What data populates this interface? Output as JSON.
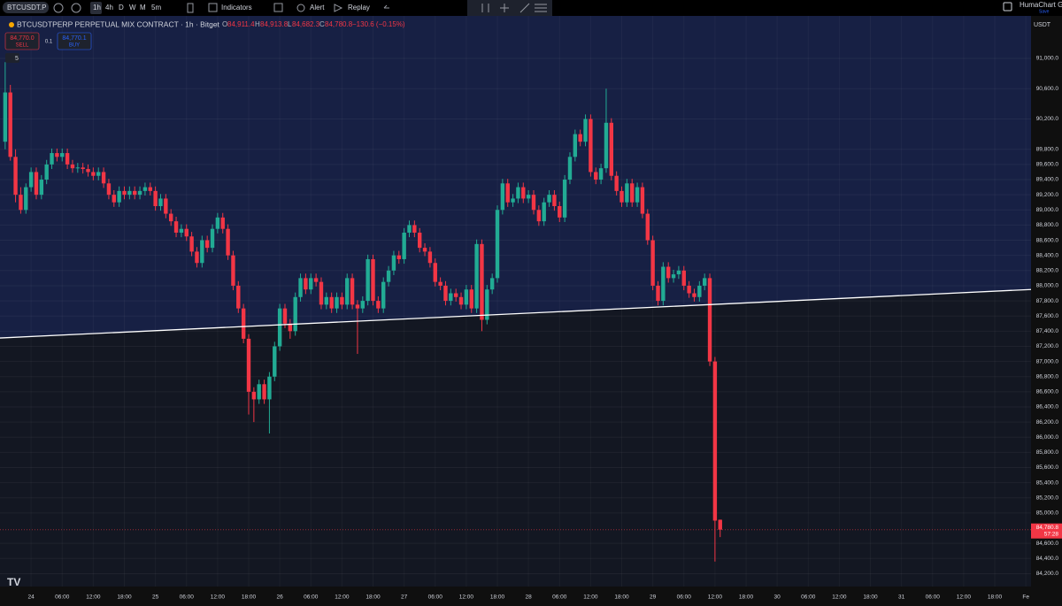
{
  "toolbar": {
    "symbol": "BTCUSDT.P",
    "intervals": [
      "1h",
      "4h",
      "D",
      "W",
      "M",
      "5m"
    ],
    "indicators": "Indicators",
    "alert": "Alert",
    "replay": "Replay",
    "account": "HumaChart Gr",
    "save": "Save"
  },
  "legend": {
    "title": "BTCUSDTPERP PERPETUAL MIX CONTRACT · 1h · Bitget",
    "o_label": "O",
    "o": "84,911.4",
    "h_label": "H",
    "h": "84,913.8",
    "l_label": "L",
    "l": "84,682.3",
    "c_label": "C",
    "c": "84,780.8",
    "change": "−130.6 (−0.15%)",
    "sell_price": "84,770.0",
    "sell": "SELL",
    "qty": "0.1",
    "buy_price": "84,770.1",
    "buy": "BUY",
    "indicator_count": "5"
  },
  "chart_data": {
    "type": "candlestick",
    "currency": "USDT",
    "up_color": "#22ab94",
    "down_color": "#f23645",
    "grid": true,
    "xlim": [
      -6,
      193
    ],
    "ylim": [
      84030,
      91560
    ],
    "xticks": [
      {
        "value": 0,
        "label": "24"
      },
      {
        "value": 6,
        "label": "06:00"
      },
      {
        "value": 12,
        "label": "12:00"
      },
      {
        "value": 18,
        "label": "18:00"
      },
      {
        "value": 24,
        "label": "25"
      },
      {
        "value": 30,
        "label": "06:00"
      },
      {
        "value": 36,
        "label": "12:00"
      },
      {
        "value": 42,
        "label": "18:00"
      },
      {
        "value": 48,
        "label": "26"
      },
      {
        "value": 54,
        "label": "06:00"
      },
      {
        "value": 60,
        "label": "12:00"
      },
      {
        "value": 66,
        "label": "18:00"
      },
      {
        "value": 72,
        "label": "27"
      },
      {
        "value": 78,
        "label": "06:00"
      },
      {
        "value": 84,
        "label": "12:00"
      },
      {
        "value": 90,
        "label": "18:00"
      },
      {
        "value": 96,
        "label": "28"
      },
      {
        "value": 102,
        "label": "06:00"
      },
      {
        "value": 108,
        "label": "12:00"
      },
      {
        "value": 114,
        "label": "18:00"
      },
      {
        "value": 120,
        "label": "29"
      },
      {
        "value": 126,
        "label": "06:00"
      },
      {
        "value": 132,
        "label": "12:00"
      },
      {
        "value": 138,
        "label": "18:00"
      },
      {
        "value": 144,
        "label": "30"
      },
      {
        "value": 150,
        "label": "06:00"
      },
      {
        "value": 156,
        "label": "12:00"
      },
      {
        "value": 162,
        "label": "18:00"
      },
      {
        "value": 168,
        "label": "31"
      },
      {
        "value": 174,
        "label": "06:00"
      },
      {
        "value": 180,
        "label": "12:00"
      },
      {
        "value": 186,
        "label": "18:00"
      },
      {
        "value": 192,
        "label": "Fe"
      }
    ],
    "yticks": [
      {
        "value": 91000,
        "label": "91,000.0"
      },
      {
        "value": 90600,
        "label": "90,600.0"
      },
      {
        "value": 90200,
        "label": "90,200.0"
      },
      {
        "value": 89800,
        "label": "89,800.0"
      },
      {
        "value": 89600,
        "label": "89,600.0"
      },
      {
        "value": 89400,
        "label": "89,400.0"
      },
      {
        "value": 89200,
        "label": "89,200.0"
      },
      {
        "value": 89000,
        "label": "89,000.0"
      },
      {
        "value": 88800,
        "label": "88,800.0"
      },
      {
        "value": 88600,
        "label": "88,600.0"
      },
      {
        "value": 88400,
        "label": "88,400.0"
      },
      {
        "value": 88200,
        "label": "88,200.0"
      },
      {
        "value": 88000,
        "label": "88,000.0"
      },
      {
        "value": 87800,
        "label": "87,800.0"
      },
      {
        "value": 87600,
        "label": "87,600.0"
      },
      {
        "value": 87400,
        "label": "87,400.0"
      },
      {
        "value": 87200,
        "label": "87,200.0"
      },
      {
        "value": 87000,
        "label": "87,000.0"
      },
      {
        "value": 86800,
        "label": "86,800.0"
      },
      {
        "value": 86600,
        "label": "86,600.0"
      },
      {
        "value": 86400,
        "label": "86,400.0"
      },
      {
        "value": 86200,
        "label": "86,200.0"
      },
      {
        "value": 86000,
        "label": "86,000.0"
      },
      {
        "value": 85800,
        "label": "85,800.0"
      },
      {
        "value": 85600,
        "label": "85,600.0"
      },
      {
        "value": 85400,
        "label": "85,400.0"
      },
      {
        "value": 85200,
        "label": "85,200.0"
      },
      {
        "value": 85000,
        "label": "85,000.0"
      },
      {
        "value": 84600,
        "label": "84,600.0"
      },
      {
        "value": 84400,
        "label": "84,400.0"
      },
      {
        "value": 84200,
        "label": "84,200.0"
      }
    ],
    "x": [
      -5,
      -4,
      -3,
      -2,
      -1,
      0,
      1,
      2,
      3,
      4,
      5,
      6,
      7,
      8,
      9,
      10,
      11,
      12,
      13,
      14,
      15,
      16,
      17,
      18,
      19,
      20,
      21,
      22,
      23,
      24,
      25,
      26,
      27,
      28,
      29,
      30,
      31,
      32,
      33,
      34,
      35,
      36,
      37,
      38,
      39,
      40,
      41,
      42,
      43,
      44,
      45,
      46,
      47,
      48,
      49,
      50,
      51,
      52,
      53,
      54,
      55,
      56,
      57,
      58,
      59,
      60,
      61,
      62,
      63,
      64,
      65,
      66,
      67,
      68,
      69,
      70,
      71,
      72,
      73,
      74,
      75,
      76,
      77,
      78,
      79,
      80,
      81,
      82,
      83,
      84,
      85,
      86,
      87,
      88,
      89,
      90,
      91,
      92,
      93,
      94,
      95,
      96,
      97,
      98,
      99,
      100,
      101,
      102,
      103,
      104,
      105,
      106,
      107,
      108,
      109,
      110,
      111,
      112,
      113,
      114,
      115,
      116,
      117,
      118,
      119,
      120,
      121,
      122,
      123,
      124,
      125,
      126,
      127,
      128,
      129,
      130,
      131,
      132,
      133
    ],
    "ohlc": [
      [
        89900,
        90950,
        89800,
        90550
      ],
      [
        90550,
        90650,
        89650,
        89700
      ],
      [
        89700,
        89800,
        89100,
        89200
      ],
      [
        89200,
        89300,
        88950,
        89000
      ],
      [
        89000,
        89350,
        88950,
        89300
      ],
      [
        89300,
        89560,
        89240,
        89500
      ],
      [
        89500,
        89560,
        89140,
        89200
      ],
      [
        89200,
        89460,
        89140,
        89400
      ],
      [
        89400,
        89660,
        89340,
        89600
      ],
      [
        89600,
        89810,
        89540,
        89750
      ],
      [
        89750,
        89810,
        89640,
        89700
      ],
      [
        89700,
        89810,
        89640,
        89750
      ],
      [
        89750,
        89810,
        89540,
        89600
      ],
      [
        89600,
        89660,
        89490,
        89550
      ],
      [
        89550,
        89620,
        89490,
        89560
      ],
      [
        89560,
        89620,
        89480,
        89540
      ],
      [
        89540,
        89600,
        89440,
        89500
      ],
      [
        89500,
        89560,
        89390,
        89450
      ],
      [
        89450,
        89560,
        89390,
        89500
      ],
      [
        89500,
        89560,
        89290,
        89350
      ],
      [
        89350,
        89410,
        89140,
        89200
      ],
      [
        89200,
        89260,
        89040,
        89100
      ],
      [
        89100,
        89310,
        89040,
        89250
      ],
      [
        89250,
        89310,
        89140,
        89200
      ],
      [
        89200,
        89310,
        89140,
        89250
      ],
      [
        89250,
        89310,
        89140,
        89200
      ],
      [
        89200,
        89310,
        89140,
        89250
      ],
      [
        89250,
        89360,
        89190,
        89300
      ],
      [
        89300,
        89360,
        89190,
        89250
      ],
      [
        89250,
        89310,
        88990,
        89050
      ],
      [
        89050,
        89210,
        88990,
        89150
      ],
      [
        89150,
        89210,
        88890,
        88950
      ],
      [
        88950,
        89010,
        88790,
        88850
      ],
      [
        88850,
        88910,
        88640,
        88700
      ],
      [
        88700,
        88810,
        88640,
        88750
      ],
      [
        88750,
        88810,
        88590,
        88650
      ],
      [
        88650,
        88710,
        88390,
        88450
      ],
      [
        88450,
        88510,
        88240,
        88300
      ],
      [
        88300,
        88660,
        88240,
        88600
      ],
      [
        88600,
        88660,
        88440,
        88500
      ],
      [
        88500,
        88810,
        88440,
        88750
      ],
      [
        88750,
        88960,
        88690,
        88900
      ],
      [
        88900,
        88960,
        88690,
        88750
      ],
      [
        88750,
        88810,
        88340,
        88400
      ],
      [
        88400,
        88460,
        87940,
        88000
      ],
      [
        88000,
        88060,
        87640,
        87700
      ],
      [
        87700,
        87760,
        87240,
        87300
      ],
      [
        87300,
        87360,
        86300,
        86600
      ],
      [
        86600,
        86660,
        86200,
        86500
      ],
      [
        86500,
        86760,
        86440,
        86700
      ],
      [
        86700,
        86760,
        86440,
        86500
      ],
      [
        86500,
        86860,
        86050,
        86800
      ],
      [
        86800,
        87260,
        86740,
        87200
      ],
      [
        87200,
        87760,
        87140,
        87700
      ],
      [
        87700,
        87760,
        87440,
        87500
      ],
      [
        87500,
        87560,
        87300,
        87400
      ],
      [
        87400,
        87910,
        87340,
        87850
      ],
      [
        87850,
        88160,
        87790,
        88100
      ],
      [
        88100,
        88160,
        87890,
        87950
      ],
      [
        87950,
        88160,
        87890,
        88100
      ],
      [
        88100,
        88160,
        87990,
        88050
      ],
      [
        88050,
        88110,
        87690,
        87750
      ],
      [
        87750,
        87910,
        87690,
        87850
      ],
      [
        87850,
        87910,
        87640,
        87700
      ],
      [
        87700,
        87910,
        87640,
        87850
      ],
      [
        87850,
        87910,
        87690,
        87750
      ],
      [
        87750,
        88160,
        87690,
        88100
      ],
      [
        88100,
        88160,
        87690,
        87750
      ],
      [
        87750,
        87810,
        87100,
        87700
      ],
      [
        87700,
        87860,
        87640,
        87800
      ],
      [
        87800,
        88410,
        87740,
        88350
      ],
      [
        88350,
        88410,
        87740,
        87800
      ],
      [
        87800,
        87860,
        87640,
        87700
      ],
      [
        87700,
        88110,
        87640,
        88050
      ],
      [
        88050,
        88260,
        87990,
        88200
      ],
      [
        88200,
        88460,
        88140,
        88400
      ],
      [
        88400,
        88460,
        88290,
        88350
      ],
      [
        88350,
        88760,
        88290,
        88700
      ],
      [
        88700,
        88860,
        88640,
        88800
      ],
      [
        88800,
        88860,
        88640,
        88700
      ],
      [
        88700,
        88760,
        88440,
        88500
      ],
      [
        88500,
        88560,
        88390,
        88450
      ],
      [
        88450,
        88510,
        88240,
        88300
      ],
      [
        88300,
        88360,
        87990,
        88050
      ],
      [
        88050,
        88110,
        87940,
        88000
      ],
      [
        88000,
        88060,
        87740,
        87800
      ],
      [
        87800,
        87960,
        87740,
        87900
      ],
      [
        87900,
        87960,
        87790,
        87850
      ],
      [
        87850,
        87910,
        87690,
        87750
      ],
      [
        87750,
        88010,
        87690,
        87950
      ],
      [
        87950,
        88010,
        87640,
        87700
      ],
      [
        87700,
        88610,
        87640,
        88550
      ],
      [
        88550,
        88610,
        87400,
        87550
      ],
      [
        87550,
        88010,
        87490,
        87950
      ],
      [
        87950,
        88160,
        87890,
        88100
      ],
      [
        88100,
        89060,
        88040,
        89000
      ],
      [
        89000,
        89410,
        88940,
        89350
      ],
      [
        89350,
        89410,
        89040,
        89100
      ],
      [
        89100,
        89210,
        89040,
        89150
      ],
      [
        89150,
        89360,
        89090,
        89300
      ],
      [
        89300,
        89360,
        89090,
        89150
      ],
      [
        89150,
        89260,
        89090,
        89200
      ],
      [
        89200,
        89260,
        88940,
        89000
      ],
      [
        89000,
        89060,
        88790,
        88850
      ],
      [
        88850,
        89160,
        88790,
        89100
      ],
      [
        89100,
        89260,
        89040,
        89200
      ],
      [
        89200,
        89260,
        88990,
        89050
      ],
      [
        89050,
        89110,
        88840,
        88900
      ],
      [
        88900,
        89460,
        88840,
        89400
      ],
      [
        89400,
        89760,
        89340,
        89700
      ],
      [
        89700,
        90060,
        89640,
        90000
      ],
      [
        90000,
        90060,
        89840,
        89900
      ],
      [
        89900,
        90260,
        89840,
        90200
      ],
      [
        90200,
        90260,
        89440,
        89500
      ],
      [
        89500,
        89560,
        89340,
        89400
      ],
      [
        89400,
        89610,
        89340,
        89550
      ],
      [
        89550,
        90600,
        89490,
        90150
      ],
      [
        90150,
        90210,
        89390,
        89450
      ],
      [
        89450,
        89510,
        89190,
        89250
      ],
      [
        89250,
        89310,
        89040,
        89100
      ],
      [
        89100,
        89410,
        89040,
        89350
      ],
      [
        89350,
        89410,
        89040,
        89100
      ],
      [
        89100,
        89360,
        89040,
        89300
      ],
      [
        89300,
        89360,
        88890,
        88950
      ],
      [
        88950,
        89010,
        88540,
        88600
      ],
      [
        88600,
        88660,
        87940,
        88000
      ],
      [
        88000,
        88060,
        87740,
        87800
      ],
      [
        87800,
        88310,
        87740,
        88250
      ],
      [
        88250,
        88310,
        88040,
        88100
      ],
      [
        88100,
        88210,
        88040,
        88150
      ],
      [
        88150,
        88260,
        88090,
        88200
      ],
      [
        88200,
        88260,
        87940,
        88000
      ],
      [
        88000,
        88060,
        87840,
        87900
      ],
      [
        87900,
        87960,
        87790,
        87850
      ],
      [
        87850,
        88060,
        87790,
        88000
      ],
      [
        88000,
        88160,
        87940,
        88100
      ],
      [
        88100,
        88160,
        86940,
        87000
      ],
      [
        87000,
        87060,
        84360,
        84900
      ],
      [
        84911.4,
        84913.8,
        84682.3,
        84780.8
      ]
    ],
    "trendline": {
      "x": [
        -6,
        193
      ],
      "y": [
        87310,
        87950
      ],
      "color": "#ffffff"
    },
    "last_price": {
      "value": 84780.8,
      "label": "84,780.8",
      "countdown": "57:28"
    }
  }
}
